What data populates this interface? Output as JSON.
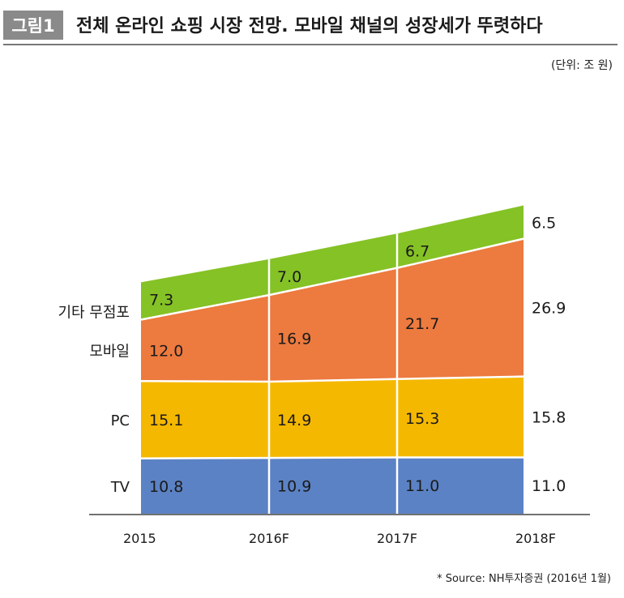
{
  "header": {
    "figure_label": "그림1",
    "title": "전체 온라인 쇼핑 시장 전망. 모바일 채널의 성장세가 뚜렷하다"
  },
  "unit": "(단위: 조 원)",
  "source": "* Source: NH투자증권 (2016년 1월)",
  "chart_data": {
    "type": "area",
    "stacked": true,
    "categories": [
      "2015",
      "2016F",
      "2017F",
      "2018F"
    ],
    "series": [
      {
        "name": "TV",
        "values": [
          10.8,
          10.9,
          11.0,
          11.0
        ],
        "color": "#5b82c4"
      },
      {
        "name": "PC",
        "values": [
          15.1,
          14.9,
          15.3,
          15.8
        ],
        "color": "#f5b800"
      },
      {
        "name": "모바일",
        "values": [
          12.0,
          16.9,
          21.7,
          26.9
        ],
        "color": "#ed7a3e"
      },
      {
        "name": "기타 무점포",
        "values": [
          7.3,
          7.0,
          6.7,
          6.5
        ],
        "color": "#85c225"
      }
    ],
    "value_labels": {
      "TV": [
        "10.8",
        "10.9",
        "11.0",
        "11.0"
      ],
      "PC": [
        "15.1",
        "14.9",
        "15.3",
        "15.8"
      ],
      "모바일": [
        "12.0",
        "16.9",
        "21.7",
        "26.9"
      ],
      "기타 무점포": [
        "7.3",
        "7.0",
        "6.7",
        "6.5"
      ]
    },
    "legend": "left"
  }
}
